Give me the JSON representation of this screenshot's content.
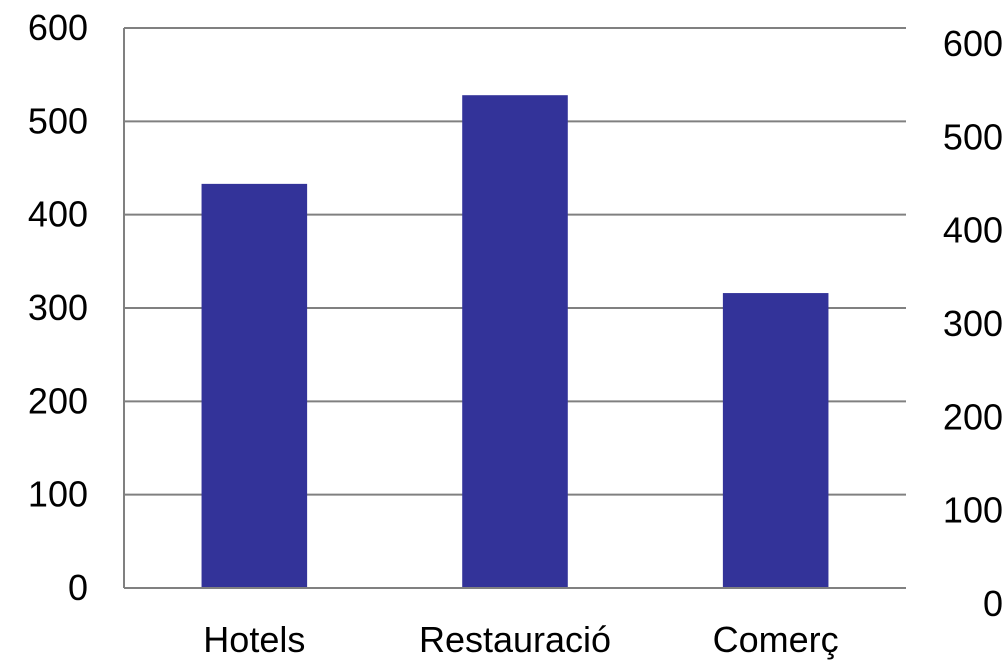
{
  "chart_data": {
    "type": "bar",
    "title": "",
    "xlabel": "",
    "ylabel": "",
    "categories": [
      "Hotels",
      "Restauració",
      "Comerç"
    ],
    "values": [
      433,
      528,
      316
    ],
    "ylim": [
      0,
      600
    ],
    "y_ticks": [
      0,
      100,
      200,
      300,
      400,
      500,
      600
    ],
    "y_tick_labels": [
      "0",
      "100",
      "200",
      "300",
      "400",
      "500",
      "600"
    ],
    "secondary_y_ticks": [
      0,
      100,
      200,
      300,
      400,
      500,
      600
    ],
    "secondary_y_tick_labels": [
      "0",
      "100",
      "200",
      "300",
      "400",
      "500",
      "600"
    ],
    "grid": true,
    "legend": "none",
    "colors": {
      "bar": "#333399",
      "grid": "#808080",
      "axis": "#808080"
    }
  }
}
